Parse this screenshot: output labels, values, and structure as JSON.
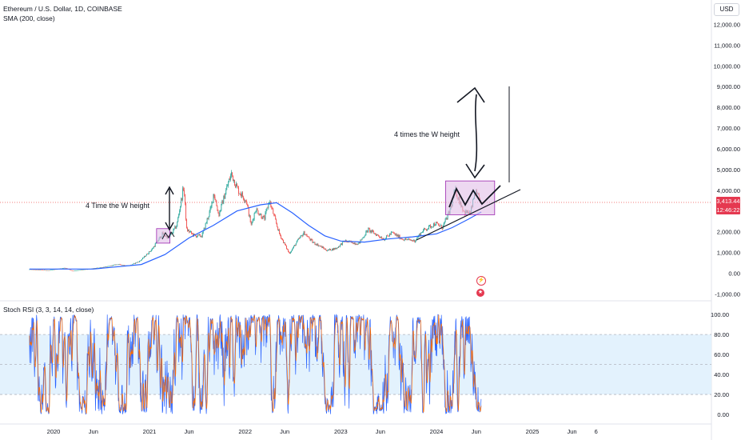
{
  "header": {
    "symbol_line": "Ethereum / U.S. Dollar, 1D, COINBASE",
    "indicator_line": "SMA (200, close)",
    "currency": "USD"
  },
  "last_price": {
    "value": "3,413.44",
    "countdown": "12:46:22"
  },
  "annotations": {
    "left_text": "4 Time the W height",
    "right_text": "4 times the W height"
  },
  "oscillator": {
    "label": "Stoch RSI (3, 3, 14, 14, close)"
  },
  "colors": {
    "candle_up": "#26a69a",
    "candle_down": "#ef5350",
    "sma": "#2962ff",
    "k_line": "#2962ff",
    "d_line": "#ff6d00",
    "highlight_box": "#e1bee7",
    "price_badge": "#e53950",
    "rsi_band": "#e3f2fd"
  },
  "chart_data": [
    {
      "type": "line",
      "title": "Ethereum / U.S. Dollar, 1D, COINBASE",
      "series_names": [
        "SMA (200, close)"
      ],
      "y_tick_labels": [
        "-1,000.00",
        "0.00",
        "1,000.00",
        "2,000.00",
        "3,000.00",
        "4,000.00",
        "5,000.00",
        "6,000.00",
        "7,000.00",
        "8,000.00",
        "9,000.00",
        "10,000.00",
        "11,000.00",
        "12,000.00"
      ],
      "y_ticks": [
        -1000,
        0,
        1000,
        2000,
        3000,
        4000,
        5000,
        6000,
        7000,
        8000,
        9000,
        10000,
        11000,
        12000
      ],
      "ylim": [
        -1300,
        12600
      ],
      "x_tick_labels": [
        "2020",
        "Jun",
        "2021",
        "Jun",
        "2022",
        "Jun",
        "2023",
        "Jun",
        "2024",
        "Jun",
        "2025",
        "Jun",
        "6"
      ],
      "x_ticks": [
        "2020-01-01",
        "2020-06-01",
        "2021-01-01",
        "2021-06-01",
        "2022-01-01",
        "2022-06-01",
        "2023-01-01",
        "2023-06-01",
        "2024-01-01",
        "2024-06-01",
        "2025-01-01",
        "2025-06-01",
        "2025-09-01"
      ],
      "price_path": [
        [
          "2019-10-01",
          180
        ],
        [
          "2019-12-15",
          140
        ],
        [
          "2020-02-15",
          260
        ],
        [
          "2020-03-13",
          110
        ],
        [
          "2020-05-15",
          200
        ],
        [
          "2020-07-25",
          320
        ],
        [
          "2020-09-01",
          430
        ],
        [
          "2020-10-15",
          360
        ],
        [
          "2020-11-25",
          580
        ],
        [
          "2021-01-10",
          1150
        ],
        [
          "2021-02-20",
          1900
        ],
        [
          "2021-03-15",
          1700
        ],
        [
          "2021-04-15",
          2300
        ],
        [
          "2021-05-12",
          4200
        ],
        [
          "2021-05-23",
          2100
        ],
        [
          "2021-06-22",
          1800
        ],
        [
          "2021-07-20",
          1800
        ],
        [
          "2021-08-25",
          3200
        ],
        [
          "2021-09-03",
          3900
        ],
        [
          "2021-09-22",
          2800
        ],
        [
          "2021-10-25",
          4200
        ],
        [
          "2021-11-10",
          4800
        ],
        [
          "2021-12-05",
          4000
        ],
        [
          "2022-01-05",
          3500
        ],
        [
          "2022-01-24",
          2300
        ],
        [
          "2022-02-10",
          3100
        ],
        [
          "2022-03-15",
          2600
        ],
        [
          "2022-04-03",
          3500
        ],
        [
          "2022-05-12",
          1900
        ],
        [
          "2022-06-18",
          950
        ],
        [
          "2022-07-25",
          1650
        ],
        [
          "2022-08-14",
          1950
        ],
        [
          "2022-09-15",
          1500
        ],
        [
          "2022-10-15",
          1300
        ],
        [
          "2022-11-09",
          1100
        ],
        [
          "2022-12-15",
          1200
        ],
        [
          "2023-01-15",
          1550
        ],
        [
          "2023-03-10",
          1420
        ],
        [
          "2023-04-15",
          2100
        ],
        [
          "2023-06-15",
          1650
        ],
        [
          "2023-07-15",
          1950
        ],
        [
          "2023-08-25",
          1650
        ],
        [
          "2023-10-10",
          1560
        ],
        [
          "2023-11-10",
          2050
        ],
        [
          "2023-12-28",
          2400
        ],
        [
          "2024-01-23",
          2200
        ],
        [
          "2024-02-20",
          2950
        ],
        [
          "2024-03-12",
          4000
        ],
        [
          "2024-04-16",
          2950
        ],
        [
          "2024-05-10",
          2900
        ],
        [
          "2024-05-27",
          3900
        ],
        [
          "2024-06-20",
          3413
        ]
      ],
      "sma_path": [
        [
          "2019-10-01",
          200
        ],
        [
          "2020-06-01",
          200
        ],
        [
          "2020-12-01",
          420
        ],
        [
          "2021-03-01",
          900
        ],
        [
          "2021-06-01",
          1700
        ],
        [
          "2021-09-01",
          2300
        ],
        [
          "2021-12-01",
          3000
        ],
        [
          "2022-03-01",
          3300
        ],
        [
          "2022-05-01",
          3400
        ],
        [
          "2022-07-01",
          2900
        ],
        [
          "2022-09-01",
          2300
        ],
        [
          "2022-11-01",
          1800
        ],
        [
          "2023-01-01",
          1550
        ],
        [
          "2023-04-01",
          1500
        ],
        [
          "2023-07-01",
          1650
        ],
        [
          "2023-10-01",
          1750
        ],
        [
          "2024-01-01",
          1900
        ],
        [
          "2024-03-01",
          2200
        ],
        [
          "2024-05-01",
          2600
        ],
        [
          "2024-06-20",
          2950
        ]
      ],
      "annotations": [
        "4 Time the W height",
        "4 times the W height"
      ],
      "last_value": 3413.44
    },
    {
      "type": "line",
      "title": "Stoch RSI (3, 3, 14, 14, close)",
      "series_names": [],
      "y_tick_labels": [
        "0.00",
        "20.00",
        "40.00",
        "60.00",
        "80.00",
        "100.00"
      ],
      "y_ticks": [
        0,
        20,
        40,
        60,
        80,
        100
      ],
      "ylim": [
        -5,
        105
      ],
      "bands": [
        20,
        50,
        80
      ]
    }
  ]
}
